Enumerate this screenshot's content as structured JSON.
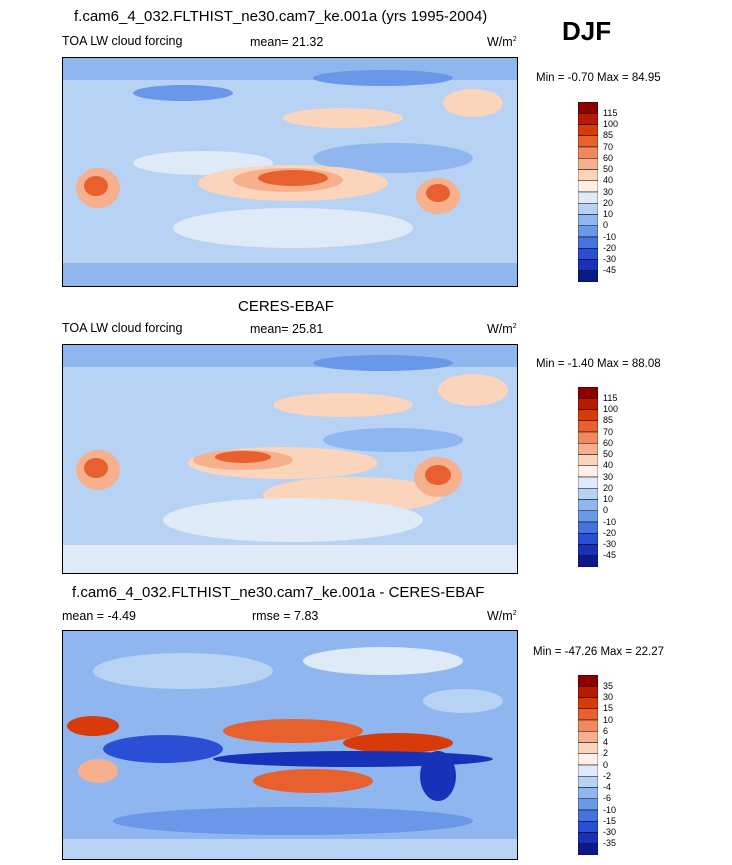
{
  "season": "DJF",
  "colorbars": {
    "main": {
      "labels": [
        "115",
        "100",
        "85",
        "70",
        "60",
        "50",
        "40",
        "30",
        "20",
        "10",
        "0",
        "-10",
        "-20",
        "-30",
        "-45"
      ],
      "colors": [
        "#8b0000",
        "#b51b00",
        "#d83a0a",
        "#e8602e",
        "#f08a5c",
        "#f6b08e",
        "#fbd4bc",
        "#fdf0e6",
        "#deeaf7",
        "#b7d2f2",
        "#8fb6ee",
        "#6a97e8",
        "#4673e0",
        "#2a4fd4",
        "#1732b8",
        "#0a1a8a"
      ]
    },
    "diff": {
      "labels": [
        "35",
        "30",
        "15",
        "10",
        "6",
        "4",
        "2",
        "0",
        "-2",
        "-4",
        "-6",
        "-10",
        "-15",
        "-30",
        "-35"
      ],
      "colors": [
        "#8b0000",
        "#b51b00",
        "#d83a0a",
        "#e8602e",
        "#f08a5c",
        "#f6b08e",
        "#fbd4bc",
        "#fdf0e6",
        "#deeaf7",
        "#b7d2f2",
        "#8fb6ee",
        "#6a97e8",
        "#4673e0",
        "#2a4fd4",
        "#1732b8",
        "#0a1a8a"
      ]
    }
  },
  "chart_data": [
    {
      "type": "heatmap",
      "title": "f.cam6_4_032.FLTHIST_ne30.cam7_ke.001a (yrs 1995-2004)",
      "left_label": "TOA LW cloud forcing",
      "mean_text": "mean=  21.32",
      "units": "W/m",
      "units_exp": "2",
      "minmax": "Min =  -0.70 Max =  84.95",
      "min": -0.7,
      "max": 84.95,
      "levels": [
        -45,
        -30,
        -20,
        -10,
        0,
        10,
        20,
        30,
        40,
        50,
        60,
        70,
        85,
        100,
        115
      ]
    },
    {
      "type": "heatmap",
      "title": "CERES-EBAF",
      "left_label": "TOA LW cloud forcing",
      "mean_text": "mean=  25.81",
      "units": "W/m",
      "units_exp": "2",
      "minmax": "Min =  -1.40 Max =  88.08",
      "min": -1.4,
      "max": 88.08,
      "levels": [
        -45,
        -30,
        -20,
        -10,
        0,
        10,
        20,
        30,
        40,
        50,
        60,
        70,
        85,
        100,
        115
      ]
    },
    {
      "type": "heatmap",
      "title": "f.cam6_4_032.FLTHIST_ne30.cam7_ke.001a - CERES-EBAF",
      "left_label": "mean =  -4.49",
      "mean_text": "rmse =   7.83",
      "units": "W/m",
      "units_exp": "2",
      "minmax": "Min = -47.26 Max =  22.27",
      "min": -47.26,
      "max": 22.27,
      "levels": [
        -35,
        -30,
        -15,
        -10,
        -6,
        -4,
        -2,
        0,
        2,
        4,
        6,
        10,
        15,
        30,
        35
      ]
    }
  ]
}
